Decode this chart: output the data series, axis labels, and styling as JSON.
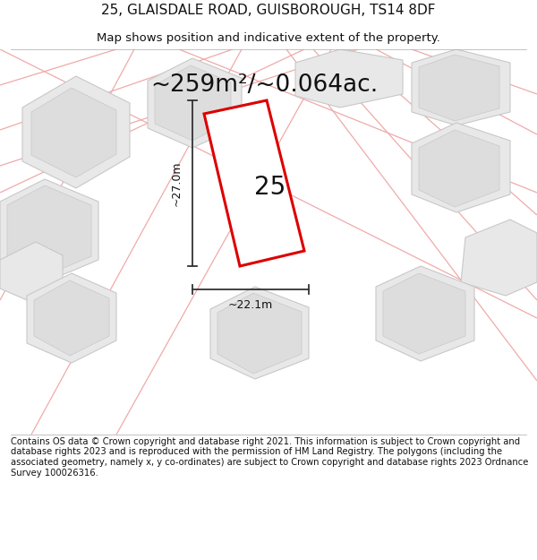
{
  "title_line1": "25, GLAISDALE ROAD, GUISBOROUGH, TS14 8DF",
  "title_line2": "Map shows position and indicative extent of the property.",
  "area_label": "~259m²/~0.064ac.",
  "plot_number": "25",
  "width_label": "~22.1m",
  "height_label": "~27.0m",
  "footer_text": "Contains OS data © Crown copyright and database right 2021. This information is subject to Crown copyright and database rights 2023 and is reproduced with the permission of HM Land Registry. The polygons (including the associated geometry, namely x, y co-ordinates) are subject to Crown copyright and database rights 2023 Ordnance Survey 100026316.",
  "bg_color": "#ffffff",
  "map_bg": "#ffffff",
  "plot_edge_color": "#dd0000",
  "neighbor_fill": "#e8e8e8",
  "neighbor_edge": "#c8c8c8",
  "road_line_color": "#f0aaaa",
  "dim_line_color": "#333333",
  "title_fontsize": 11,
  "subtitle_fontsize": 9.5,
  "area_fontsize": 19,
  "number_fontsize": 20,
  "dim_fontsize": 9,
  "footer_fontsize": 7.2
}
